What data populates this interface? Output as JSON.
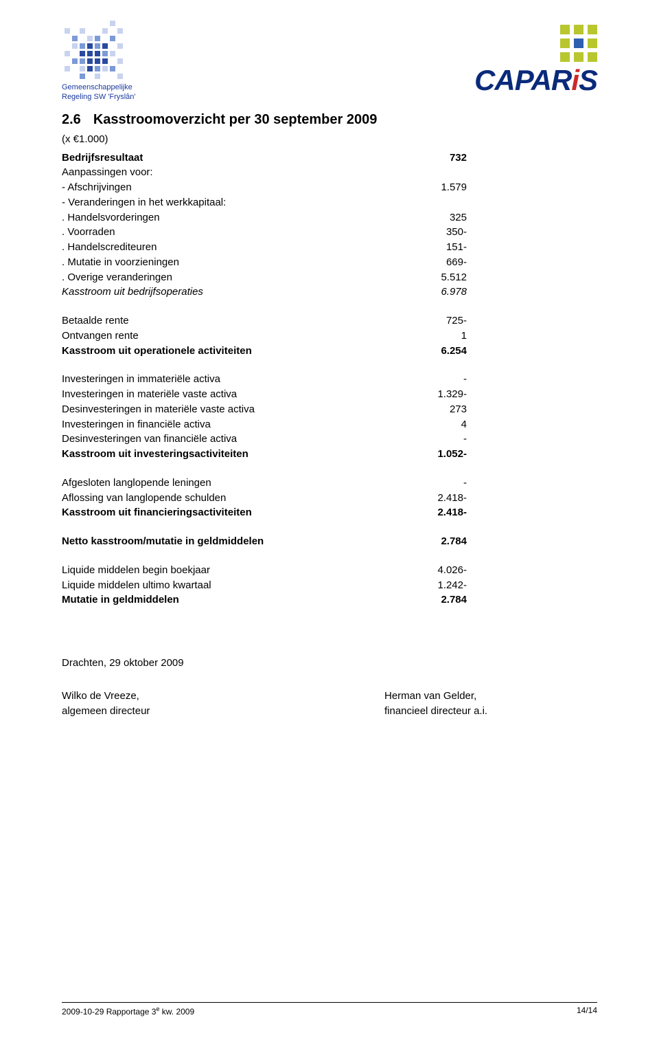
{
  "left_logo": {
    "caption_line1": "Gemeenschappelijke",
    "caption_line2": "Regeling SW 'Fryslân'",
    "caption_color": "#1a3a9e",
    "colors": {
      "transparent": "transparent",
      "lt": "#c8d3ef",
      "md": "#7b9ad6",
      "dk": "#2a4aa0"
    },
    "pattern": [
      [
        "transparent",
        "transparent",
        "transparent",
        "transparent",
        "transparent",
        "transparent",
        "lt",
        "transparent"
      ],
      [
        "lt",
        "transparent",
        "lt",
        "transparent",
        "transparent",
        "lt",
        "transparent",
        "lt"
      ],
      [
        "transparent",
        "md",
        "transparent",
        "lt",
        "md",
        "transparent",
        "md",
        "transparent"
      ],
      [
        "transparent",
        "lt",
        "md",
        "dk",
        "md",
        "dk",
        "transparent",
        "lt"
      ],
      [
        "lt",
        "transparent",
        "dk",
        "dk",
        "dk",
        "md",
        "lt",
        "transparent"
      ],
      [
        "transparent",
        "md",
        "md",
        "dk",
        "dk",
        "dk",
        "transparent",
        "lt"
      ],
      [
        "lt",
        "transparent",
        "lt",
        "dk",
        "md",
        "lt",
        "md",
        "transparent"
      ],
      [
        "transparent",
        "transparent",
        "md",
        "transparent",
        "lt",
        "transparent",
        "transparent",
        "lt"
      ]
    ]
  },
  "right_logo": {
    "word_prefix": "CAPAR",
    "word_accent": "i",
    "word_suffix": "S",
    "accent_color": "#cc2a2a",
    "main_color": "#0a2a7a",
    "dot_colors": [
      [
        "#b8c72e",
        "#b8c72e",
        "#b8c72e"
      ],
      [
        "#b8c72e",
        "#2f5fb0",
        "#b8c72e"
      ],
      [
        "#b8c72e",
        "#b8c72e",
        "#b8c72e"
      ]
    ]
  },
  "title": {
    "number": "2.6",
    "text": "Kasstroomoverzicht per 30 september 2009"
  },
  "subtitle": "(x  €1.000)",
  "rows": [
    {
      "label": "Bedrijfsresultaat",
      "value": "732",
      "bold": true
    },
    {
      "label": "Aanpassingen voor:",
      "value": ""
    },
    {
      "label": "- Afschrijvingen",
      "value": "1.579"
    },
    {
      "label": "- Veranderingen in het werkkapitaal:",
      "value": ""
    },
    {
      "label": ". Handelsvorderingen",
      "value": "325"
    },
    {
      "label": ". Voorraden",
      "value": "350-"
    },
    {
      "label": ". Handelscrediteuren",
      "value": "151-"
    },
    {
      "label": ". Mutatie in voorzieningen",
      "value": "669-"
    },
    {
      "label": ". Overige veranderingen",
      "value": "5.512"
    },
    {
      "label": "Kasstroom uit bedrijfsoperaties",
      "value": "6.978",
      "italic": true
    },
    {
      "spacer": true
    },
    {
      "label": "Betaalde rente",
      "value": "725-"
    },
    {
      "label": "Ontvangen rente",
      "value": "1"
    },
    {
      "label": "Kasstroom uit operationele activiteiten",
      "value": "6.254",
      "bold": true
    },
    {
      "spacer": true
    },
    {
      "label": "Investeringen in immateriële activa",
      "value": "-"
    },
    {
      "label": "Investeringen in materiële vaste activa",
      "value": "1.329-"
    },
    {
      "label": "Desinvesteringen in materiële vaste activa",
      "value": "273"
    },
    {
      "label": "Investeringen in financiële activa",
      "value": "4"
    },
    {
      "label": "Desinvesteringen van financiële activa",
      "value": "-"
    },
    {
      "label": "Kasstroom uit investeringsactiviteiten",
      "value": "1.052-",
      "bold": true
    },
    {
      "spacer": true
    },
    {
      "label": "Afgesloten langlopende leningen",
      "value": "-"
    },
    {
      "label": "Aflossing van langlopende schulden",
      "value": "2.418-"
    },
    {
      "label": "Kasstroom uit financieringsactiviteiten",
      "value": "2.418-",
      "bold": true
    },
    {
      "spacer": true
    },
    {
      "label": "Netto kasstroom/mutatie in geldmiddelen",
      "value": "2.784",
      "bold": true
    },
    {
      "spacer": true
    },
    {
      "label": "Liquide middelen begin boekjaar",
      "value": "4.026-"
    },
    {
      "label": "Liquide middelen ultimo kwartaal",
      "value": "1.242-"
    },
    {
      "label": "Mutatie in geldmiddelen",
      "value": "2.784",
      "bold": true
    }
  ],
  "sig": {
    "place_date": "Drachten, 29 oktober 2009",
    "left_name": "Wilko de Vreeze,",
    "left_title": "algemeen directeur",
    "right_name": "Herman van Gelder,",
    "right_title": "financieel directeur a.i."
  },
  "footer": {
    "left_prefix": "2009-10-29 Rapportage 3",
    "left_super": "e",
    "left_suffix": " kw. 2009",
    "right": "14/14"
  }
}
